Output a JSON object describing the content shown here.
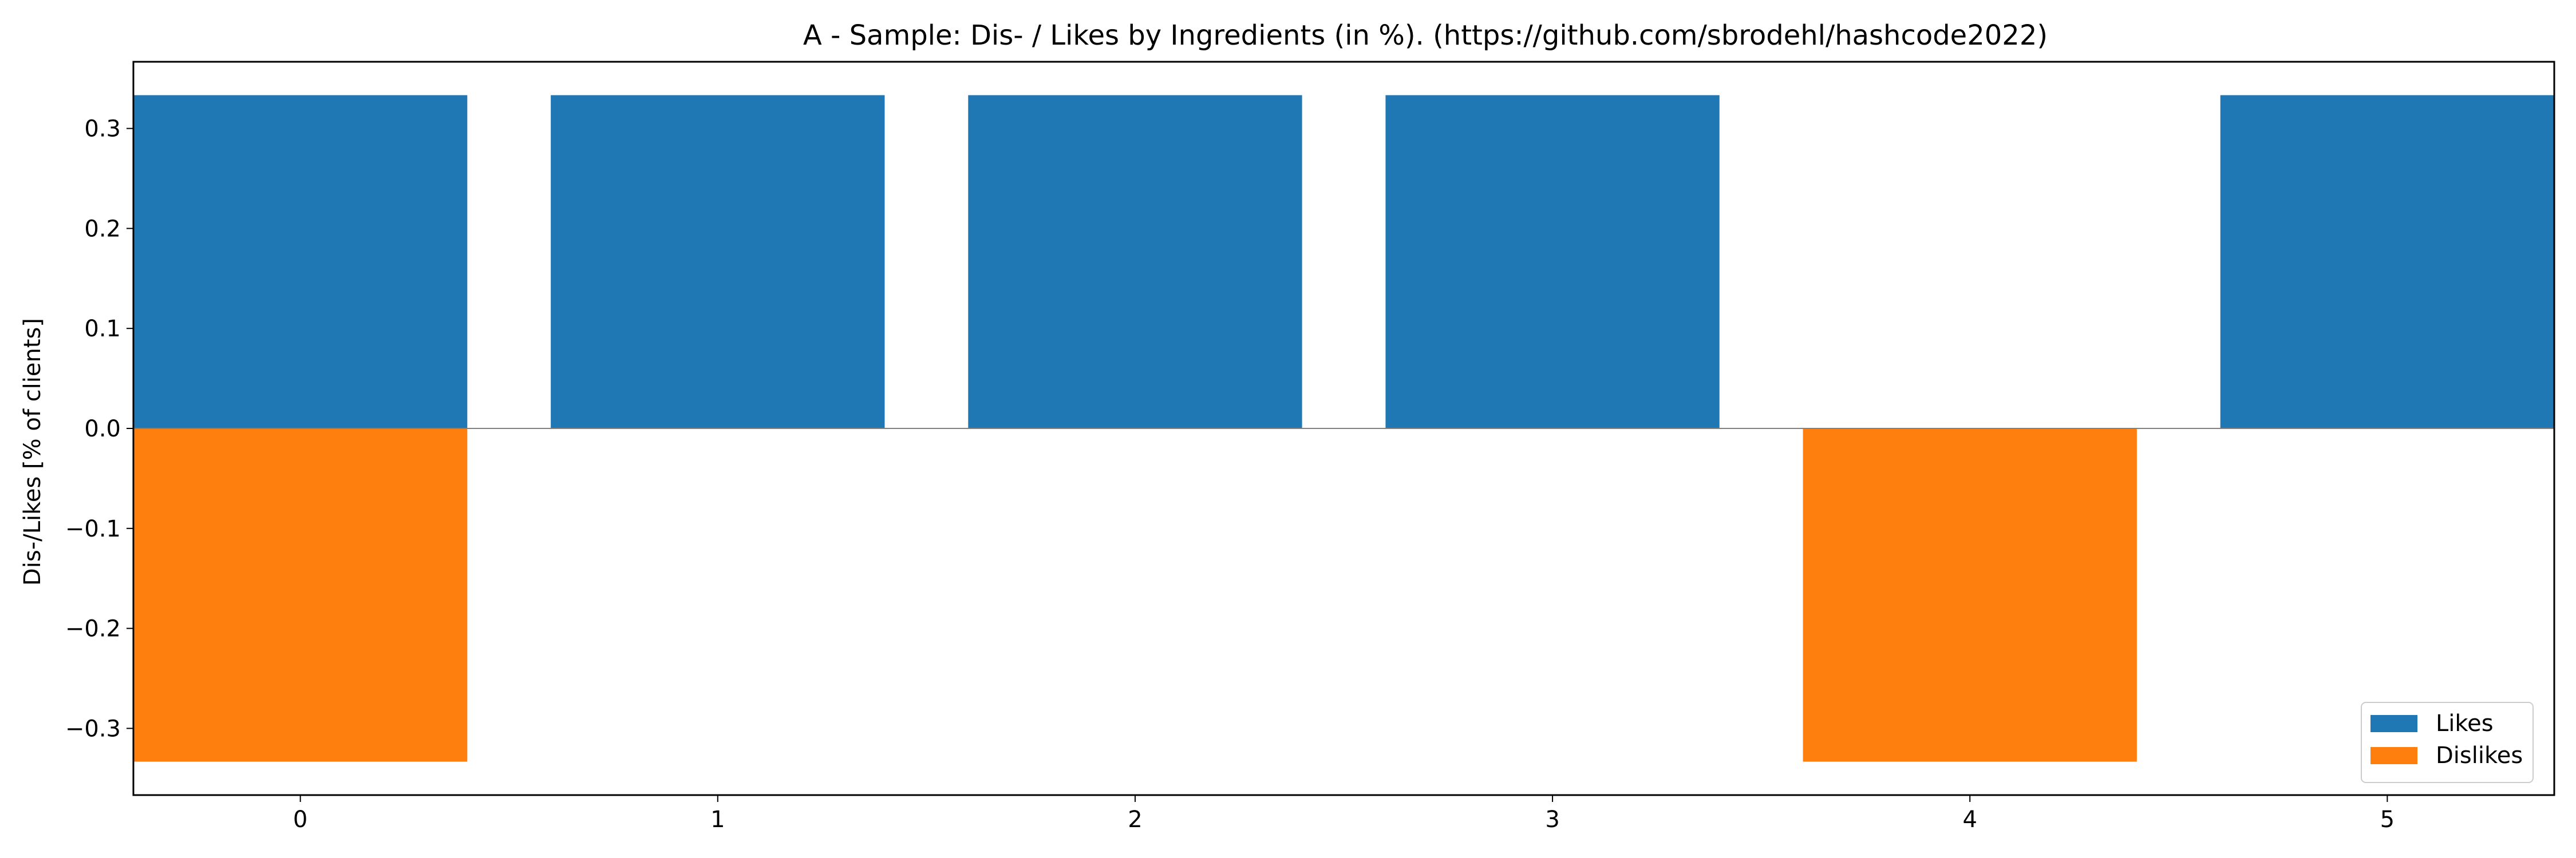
{
  "chart_data": {
    "type": "bar",
    "title": "A - Sample: Dis- / Likes by Ingredients (in %). (https://github.com/sbrodehl/hashcode2022)",
    "xlabel": "",
    "ylabel": "Dis-/Likes [% of clients]",
    "categories": [
      "0",
      "1",
      "2",
      "3",
      "4",
      "5"
    ],
    "series": [
      {
        "name": "Likes",
        "color": "#1f77b4",
        "values": [
          0.3333,
          0.3333,
          0.3333,
          0.3333,
          0,
          0.3333
        ]
      },
      {
        "name": "Dislikes",
        "color": "#ff7f0e",
        "values": [
          -0.3333,
          0,
          0,
          0,
          -0.3333,
          0
        ]
      }
    ],
    "ylim": [
      -0.3667,
      0.3667
    ],
    "yticks": [
      "0.3",
      "0.2",
      "0.1",
      "0.0",
      "−0.1",
      "−0.2",
      "−0.3"
    ],
    "ytick_values": [
      0.3,
      0.2,
      0.1,
      0.0,
      -0.1,
      -0.2,
      -0.3
    ],
    "grid": false,
    "legend_position": "lower-right"
  }
}
